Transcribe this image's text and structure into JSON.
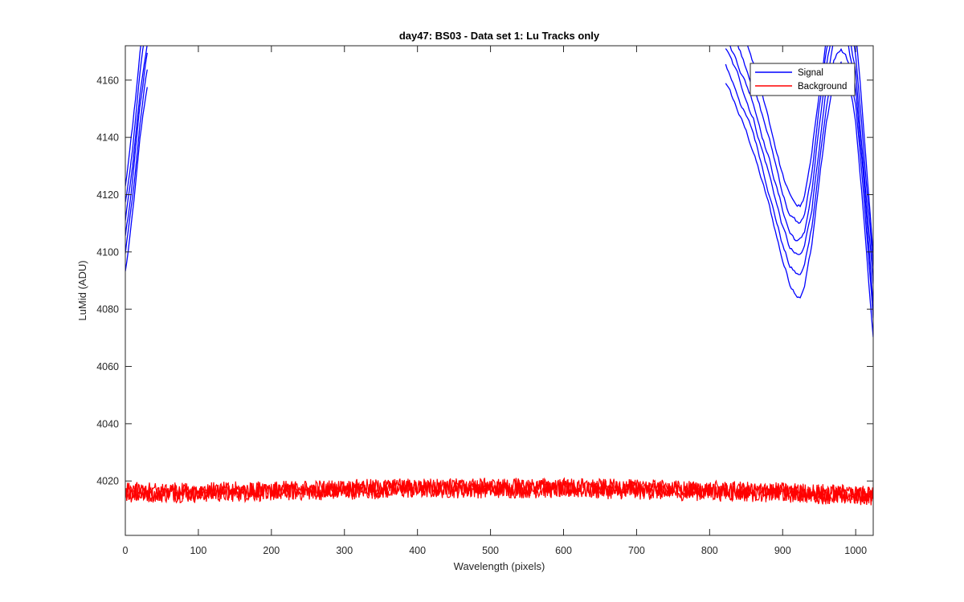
{
  "chart_data": {
    "type": "line",
    "title": "day47: BS03 - Data set 1: Lu Tracks only",
    "xlabel": "Wavelength (pixels)",
    "ylabel": "LuMid (ADU)",
    "xlim": [
      0,
      1024
    ],
    "ylim": [
      4001,
      4172
    ],
    "x_ticks": [
      0,
      100,
      200,
      300,
      400,
      500,
      600,
      700,
      800,
      900,
      1000
    ],
    "y_ticks": [
      4020,
      4040,
      4060,
      4080,
      4100,
      4120,
      4140,
      4160
    ],
    "grid": false,
    "legend_position": "top-right",
    "legend": [
      {
        "name": "Signal",
        "color": "#0000ff"
      },
      {
        "name": "Background",
        "color": "#ff0000"
      }
    ],
    "series": [
      {
        "name": "Signal",
        "color": "#0000ff",
        "traces": 6,
        "x": [
          0,
          5,
          10,
          15,
          20,
          25,
          30,
          35,
          40,
          820,
          840,
          860,
          880,
          900,
          910,
          920,
          925,
          930,
          940,
          950,
          960,
          970,
          980,
          990,
          1000,
          1010,
          1020,
          1024
        ],
        "values": [
          4108,
          4117,
          4128,
          4140,
          4153,
          4163,
          4172,
          null,
          null,
          4175,
          4163,
          4150,
          4132,
          4112,
          4104,
          4101,
          4101,
          4104,
          4118,
          4140,
          4160,
          4175,
          4180,
          4175,
          4160,
          4130,
          4098,
          4085
        ]
      },
      {
        "name": "Background",
        "color": "#ff0000",
        "traces": 3,
        "x": [
          0,
          100,
          200,
          300,
          400,
          500,
          600,
          700,
          800,
          900,
          1000,
          1024
        ],
        "values": [
          4016,
          4016,
          4016.5,
          4017,
          4017.5,
          4017.5,
          4017.5,
          4017,
          4016.5,
          4016,
          4015,
          4015
        ],
        "noise_amplitude": 3
      }
    ]
  }
}
